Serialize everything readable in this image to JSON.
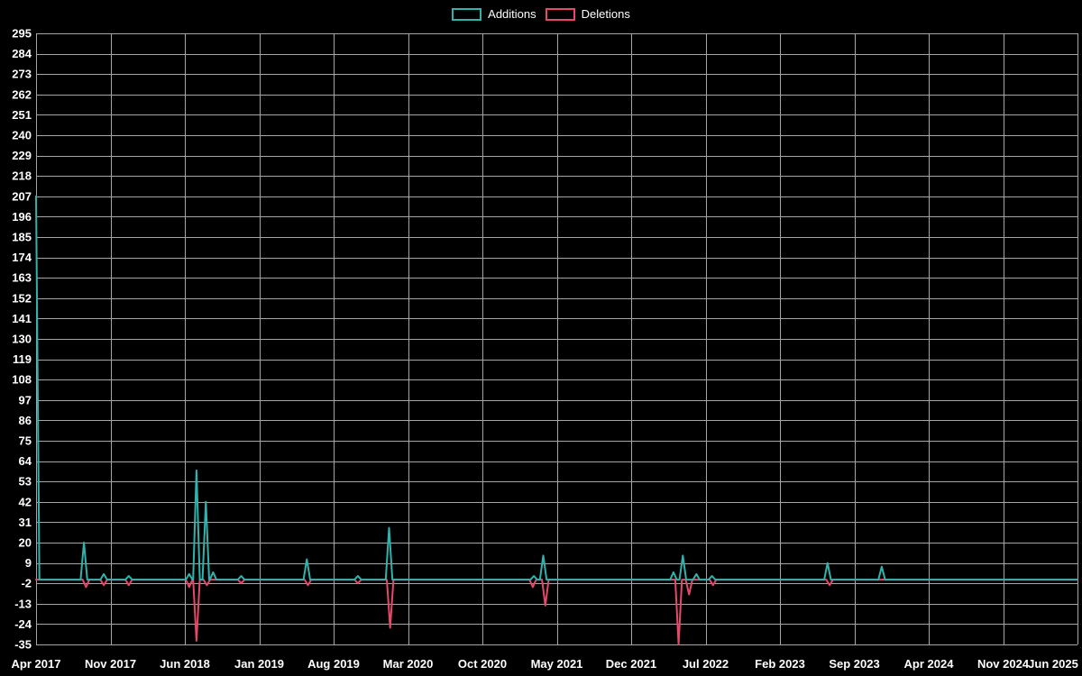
{
  "colors": {
    "background": "#000000",
    "grid": "#a6a6a6",
    "text": "#ffffff",
    "additions": "#2fb3ad",
    "deletions": "#e6486a"
  },
  "legend": {
    "additions_label": "Additions",
    "deletions_label": "Deletions"
  },
  "chart_data": {
    "type": "line",
    "title": "",
    "xlabel": "",
    "ylabel": "",
    "grid": true,
    "legend_position": "top-center",
    "ylim": [
      -35,
      295
    ],
    "y_ticks": [
      295,
      284,
      273,
      262,
      251,
      240,
      229,
      218,
      207,
      196,
      185,
      174,
      163,
      152,
      141,
      130,
      119,
      108,
      97,
      86,
      75,
      64,
      53,
      42,
      31,
      20,
      9,
      -2,
      -13,
      -24,
      -35
    ],
    "x_axis_labels": [
      "Apr 2017",
      "Nov 2017",
      "Jun 2018",
      "Jan 2019",
      "Aug 2019",
      "Mar 2020",
      "Oct 2020",
      "May 2021",
      "Dec 2021",
      "Jul 2022",
      "Feb 2023",
      "Sep 2023",
      "Apr 2024",
      "Nov 2024",
      "Jun 2025"
    ],
    "baseline": 0,
    "spike_half_width": 0.0032,
    "series": [
      {
        "name": "Additions",
        "color": "#2fb3ad",
        "spikes": [
          {
            "x": 0.0,
            "v": 207
          },
          {
            "x": 0.046,
            "v": 20
          },
          {
            "x": 0.065,
            "v": 3
          },
          {
            "x": 0.089,
            "v": 2
          },
          {
            "x": 0.147,
            "v": 3
          },
          {
            "x": 0.154,
            "v": 59
          },
          {
            "x": 0.163,
            "v": 42
          },
          {
            "x": 0.17,
            "v": 4
          },
          {
            "x": 0.197,
            "v": 2
          },
          {
            "x": 0.26,
            "v": 11
          },
          {
            "x": 0.309,
            "v": 2
          },
          {
            "x": 0.339,
            "v": 28
          },
          {
            "x": 0.478,
            "v": 2
          },
          {
            "x": 0.487,
            "v": 13
          },
          {
            "x": 0.612,
            "v": 4
          },
          {
            "x": 0.621,
            "v": 13
          },
          {
            "x": 0.634,
            "v": 3
          },
          {
            "x": 0.649,
            "v": 2
          },
          {
            "x": 0.76,
            "v": 9
          },
          {
            "x": 0.812,
            "v": 7
          }
        ]
      },
      {
        "name": "Deletions",
        "color": "#e6486a",
        "spikes": [
          {
            "x": 0.048,
            "v": -4
          },
          {
            "x": 0.065,
            "v": -3
          },
          {
            "x": 0.089,
            "v": -3
          },
          {
            "x": 0.147,
            "v": -4
          },
          {
            "x": 0.154,
            "v": -33
          },
          {
            "x": 0.164,
            "v": -3
          },
          {
            "x": 0.197,
            "v": -2
          },
          {
            "x": 0.261,
            "v": -3
          },
          {
            "x": 0.309,
            "v": -2
          },
          {
            "x": 0.34,
            "v": -26
          },
          {
            "x": 0.477,
            "v": -4
          },
          {
            "x": 0.489,
            "v": -14
          },
          {
            "x": 0.617,
            "v": -35
          },
          {
            "x": 0.627,
            "v": -8
          },
          {
            "x": 0.65,
            "v": -3
          },
          {
            "x": 0.762,
            "v": -3
          }
        ]
      }
    ]
  }
}
